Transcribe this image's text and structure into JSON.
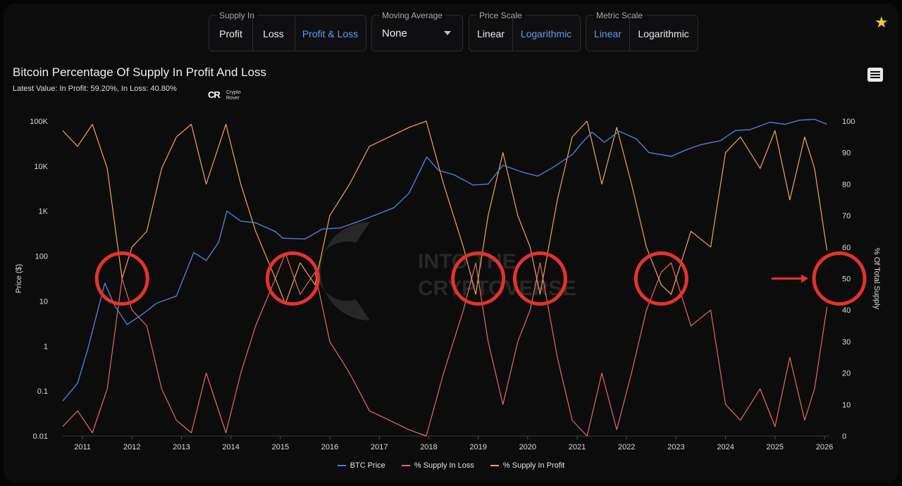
{
  "controls": {
    "supply_in": {
      "label": "Supply In",
      "options": [
        "Profit",
        "Loss",
        "Profit & Loss"
      ],
      "active": 2
    },
    "moving_average": {
      "label": "Moving Average",
      "value": "None"
    },
    "price_scale": {
      "label": "Price Scale",
      "options": [
        "Linear",
        "Logarithmic"
      ],
      "active": 1
    },
    "metric_scale": {
      "label": "Metric Scale",
      "options": [
        "Linear",
        "Logarithmic"
      ],
      "active": 0
    }
  },
  "icons": {
    "star": "star-icon",
    "menu": "hamburger-menu-icon"
  },
  "logo": {
    "mark": "CR",
    "text_line1": "Crypto",
    "text_line2": "Rover"
  },
  "watermark": {
    "line1": "INTO THE",
    "line2": "CRYPTOVERSE"
  },
  "colors": {
    "btc_price": "#4f7fd6",
    "supply_loss": "#e36b62",
    "supply_profit": "#f0a650",
    "highlight_circle": "#e5322c",
    "star": "#f6c540",
    "active_control": "#5f9cf0"
  },
  "chart_data": {
    "type": "line",
    "title": "Bitcoin Percentage Of Supply In Profit And Loss",
    "subtitle": "Latest Value: In Profit: 59.20%, In Loss: 40.80%",
    "y_left": {
      "label": "Price ($)",
      "scale": "log",
      "ticks": [
        "0.01",
        "0.1",
        "1",
        "10",
        "100",
        "1K",
        "10K",
        "100K"
      ],
      "range": [
        0.01,
        100000
      ]
    },
    "y_right": {
      "label": "% Of Total Supply",
      "scale": "linear",
      "ticks": [
        "0",
        "10",
        "20",
        "30",
        "40",
        "50",
        "60",
        "70",
        "80",
        "90",
        "100"
      ],
      "range": [
        0,
        100
      ]
    },
    "x_ticks": [
      "2011",
      "2012",
      "2013",
      "2014",
      "2015",
      "2016",
      "2017",
      "2018",
      "2019",
      "2020",
      "2021",
      "2022",
      "2023",
      "2024",
      "2025",
      "2026"
    ],
    "x_range": [
      2010.6,
      2026.1
    ],
    "series": [
      {
        "name": "BTC Price",
        "axis": "left",
        "x": [
          2010.6,
          2010.9,
          2011.1,
          2011.45,
          2011.65,
          2011.9,
          2012.2,
          2012.5,
          2012.9,
          2013.25,
          2013.5,
          2013.75,
          2013.92,
          2014.2,
          2014.5,
          2014.9,
          2015.05,
          2015.5,
          2015.85,
          2016.2,
          2016.6,
          2016.9,
          2017.3,
          2017.6,
          2017.96,
          2018.2,
          2018.5,
          2018.9,
          2019.2,
          2019.5,
          2019.9,
          2020.2,
          2020.5,
          2020.9,
          2021.1,
          2021.3,
          2021.55,
          2021.85,
          2022.2,
          2022.45,
          2022.9,
          2023.2,
          2023.5,
          2023.9,
          2024.2,
          2024.5,
          2024.9,
          2025.2,
          2025.5,
          2025.8,
          2026.05
        ],
        "y": [
          0.06,
          0.15,
          0.8,
          25,
          8,
          3,
          5,
          9,
          13,
          120,
          80,
          200,
          1000,
          600,
          550,
          350,
          250,
          240,
          400,
          420,
          600,
          800,
          1200,
          2500,
          16000,
          8000,
          6500,
          3800,
          4000,
          10500,
          7300,
          6000,
          9200,
          18000,
          33000,
          57000,
          34000,
          60000,
          40000,
          20000,
          16500,
          23000,
          30000,
          37000,
          62000,
          65000,
          95000,
          85000,
          105000,
          110000,
          85000
        ]
      },
      {
        "name": "% Supply In Loss",
        "axis": "right",
        "x": [
          2010.6,
          2010.9,
          2011.2,
          2011.5,
          2011.8,
          2012.0,
          2012.3,
          2012.6,
          2012.9,
          2013.2,
          2013.5,
          2013.9,
          2014.2,
          2014.5,
          2014.9,
          2015.1,
          2015.4,
          2015.7,
          2016.0,
          2016.4,
          2016.8,
          2017.2,
          2017.6,
          2017.95,
          2018.3,
          2018.7,
          2018.95,
          2019.2,
          2019.5,
          2019.8,
          2020.05,
          2020.25,
          2020.6,
          2020.9,
          2021.2,
          2021.5,
          2021.8,
          2022.1,
          2022.4,
          2022.7,
          2022.9,
          2023.3,
          2023.7,
          2024.0,
          2024.3,
          2024.7,
          2025.0,
          2025.3,
          2025.6,
          2025.8,
          2026.05
        ],
        "y": [
          3,
          8,
          1,
          15,
          50,
          40,
          35,
          15,
          5,
          1,
          20,
          1,
          20,
          35,
          50,
          58,
          45,
          52,
          30,
          20,
          8,
          5,
          2,
          0,
          20,
          40,
          55,
          30,
          10,
          30,
          40,
          55,
          25,
          5,
          0,
          20,
          2,
          20,
          40,
          52,
          55,
          35,
          40,
          10,
          5,
          15,
          3,
          25,
          5,
          15,
          41
        ]
      },
      {
        "name": "% Supply In Profit",
        "axis": "right",
        "x": [
          2010.6,
          2010.9,
          2011.2,
          2011.5,
          2011.8,
          2012.0,
          2012.3,
          2012.6,
          2012.9,
          2013.2,
          2013.5,
          2013.9,
          2014.2,
          2014.5,
          2014.9,
          2015.1,
          2015.4,
          2015.7,
          2016.0,
          2016.4,
          2016.8,
          2017.2,
          2017.6,
          2017.95,
          2018.3,
          2018.7,
          2018.95,
          2019.2,
          2019.5,
          2019.8,
          2020.05,
          2020.25,
          2020.6,
          2020.9,
          2021.2,
          2021.5,
          2021.8,
          2022.1,
          2022.4,
          2022.7,
          2022.9,
          2023.3,
          2023.7,
          2024.0,
          2024.3,
          2024.7,
          2025.0,
          2025.3,
          2025.6,
          2025.8,
          2026.05
        ],
        "y": [
          97,
          92,
          99,
          85,
          50,
          60,
          65,
          85,
          95,
          99,
          80,
          99,
          80,
          65,
          50,
          42,
          55,
          48,
          70,
          80,
          92,
          95,
          98,
          100,
          80,
          60,
          45,
          70,
          90,
          70,
          60,
          45,
          75,
          95,
          100,
          80,
          98,
          80,
          60,
          48,
          45,
          65,
          60,
          90,
          95,
          85,
          97,
          75,
          95,
          85,
          59
        ]
      }
    ],
    "highlight_circles_at_x": [
      2011.8,
      2015.25,
      2019.0,
      2020.25,
      2022.7,
      2026.3
    ],
    "highlight_circles_at_pct": 50,
    "arrow_points_to": "last circle",
    "legend_position": "bottom-center",
    "grid": false
  }
}
